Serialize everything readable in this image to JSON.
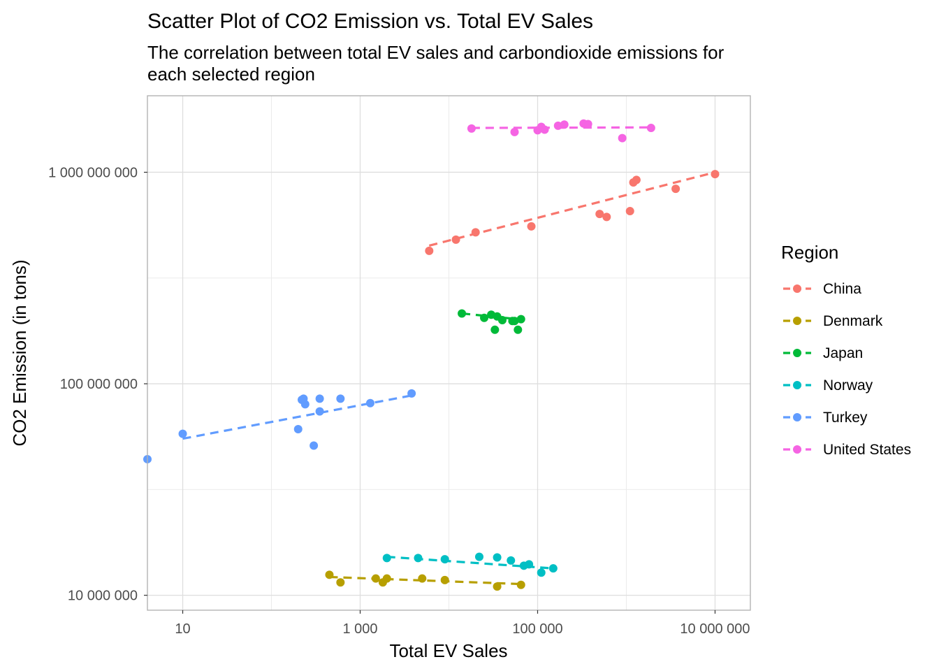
{
  "chart_data": {
    "type": "scatter",
    "title": "Scatter Plot of CO2 Emission vs. Total EV Sales",
    "subtitle_lines": [
      "The correlation between total EV sales and carbondioxide emissions for",
      "each selected region"
    ],
    "xlabel": "Total EV Sales",
    "ylabel": "CO2 Emission (in tons)",
    "x_scale": "log10",
    "y_scale": "log10",
    "xlim": [
      4,
      25000000
    ],
    "ylim": [
      8500000,
      2300000000
    ],
    "x_ticks": [
      {
        "value": 10,
        "label": "10"
      },
      {
        "value": 1000,
        "label": "1 000"
      },
      {
        "value": 100000,
        "label": "100 000"
      },
      {
        "value": 10000000,
        "label": "10 000 000"
      }
    ],
    "x_minor_ticks": [
      1,
      100,
      10000,
      1000000
    ],
    "y_ticks": [
      {
        "value": 10000000,
        "label": "10 000 000"
      },
      {
        "value": 100000000,
        "label": "100 000 000"
      },
      {
        "value": 1000000000,
        "label": "1 000 000 000"
      }
    ],
    "y_minor_ticks": [
      31622777,
      316227766
    ],
    "grid": true,
    "legend": {
      "title": "Region",
      "position": "right"
    },
    "trend_line_style": "dashed",
    "series": [
      {
        "name": "China",
        "color": "#F8766D",
        "points": [
          [
            6000,
            425000000
          ],
          [
            12000,
            480000000
          ],
          [
            20000,
            520000000
          ],
          [
            85000,
            555000000
          ],
          [
            600000,
            615000000
          ],
          [
            500000,
            635000000
          ],
          [
            1100000,
            655000000
          ],
          [
            1200000,
            895000000
          ],
          [
            1300000,
            920000000
          ],
          [
            3600000,
            835000000
          ],
          [
            10000000,
            980000000
          ]
        ],
        "trend": [
          [
            6000,
            450000000
          ],
          [
            10000000,
            1000000000
          ]
        ]
      },
      {
        "name": "Denmark",
        "color": "#B79F00",
        "points": [
          [
            450,
            12500000
          ],
          [
            600,
            11500000
          ],
          [
            1500,
            12000000
          ],
          [
            1800,
            11500000
          ],
          [
            2000,
            12000000
          ],
          [
            5000,
            12000000
          ],
          [
            9000,
            11800000
          ],
          [
            35000,
            11000000
          ],
          [
            65000,
            11200000
          ]
        ],
        "trend": [
          [
            450,
            12200000
          ],
          [
            65000,
            11300000
          ]
        ]
      },
      {
        "name": "Norway",
        "color": "#00BFC4",
        "points": [
          [
            2000,
            15000000
          ],
          [
            4500,
            15000000
          ],
          [
            9000,
            14800000
          ],
          [
            22000,
            15200000
          ],
          [
            35000,
            15100000
          ],
          [
            50000,
            14600000
          ],
          [
            70000,
            13800000
          ],
          [
            80000,
            14000000
          ],
          [
            110000,
            12800000
          ],
          [
            150000,
            13400000
          ]
        ],
        "trend": [
          [
            2000,
            15200000
          ],
          [
            150000,
            13400000
          ]
        ]
      },
      {
        "name": "Japan",
        "color": "#00BA38",
        "points": [
          [
            14000,
            215000000
          ],
          [
            25000,
            205000000
          ],
          [
            30000,
            212000000
          ],
          [
            35000,
            208000000
          ],
          [
            40000,
            200000000
          ],
          [
            33000,
            180000000
          ],
          [
            52000,
            198000000
          ],
          [
            60000,
            180000000
          ],
          [
            65000,
            202000000
          ],
          [
            55000,
            198000000
          ]
        ],
        "trend": [
          [
            14000,
            215000000
          ],
          [
            60000,
            202000000
          ]
        ]
      },
      {
        "name": "Turkey",
        "color": "#619CFF",
        "points": [
          [
            4,
            44000000
          ],
          [
            10,
            58000000
          ],
          [
            200,
            61000000
          ],
          [
            220,
            84000000
          ],
          [
            240,
            80000000
          ],
          [
            300,
            51000000
          ],
          [
            350,
            85000000
          ],
          [
            230,
            85000000
          ],
          [
            350,
            74000000
          ],
          [
            600,
            85000000
          ],
          [
            1300,
            81000000
          ],
          [
            3800,
            90000000
          ]
        ],
        "trend": [
          [
            10,
            55000000
          ],
          [
            3800,
            88000000
          ]
        ]
      },
      {
        "name": "United States",
        "color": "#F564E3",
        "points": [
          [
            18000,
            1610000000
          ],
          [
            55000,
            1550000000
          ],
          [
            100000,
            1580000000
          ],
          [
            110000,
            1640000000
          ],
          [
            120000,
            1590000000
          ],
          [
            170000,
            1660000000
          ],
          [
            200000,
            1680000000
          ],
          [
            330000,
            1700000000
          ],
          [
            370000,
            1690000000
          ],
          [
            900000,
            1450000000
          ],
          [
            1900000,
            1620000000
          ]
        ],
        "trend": [
          [
            18000,
            1620000000
          ],
          [
            1900000,
            1630000000
          ]
        ]
      }
    ]
  }
}
